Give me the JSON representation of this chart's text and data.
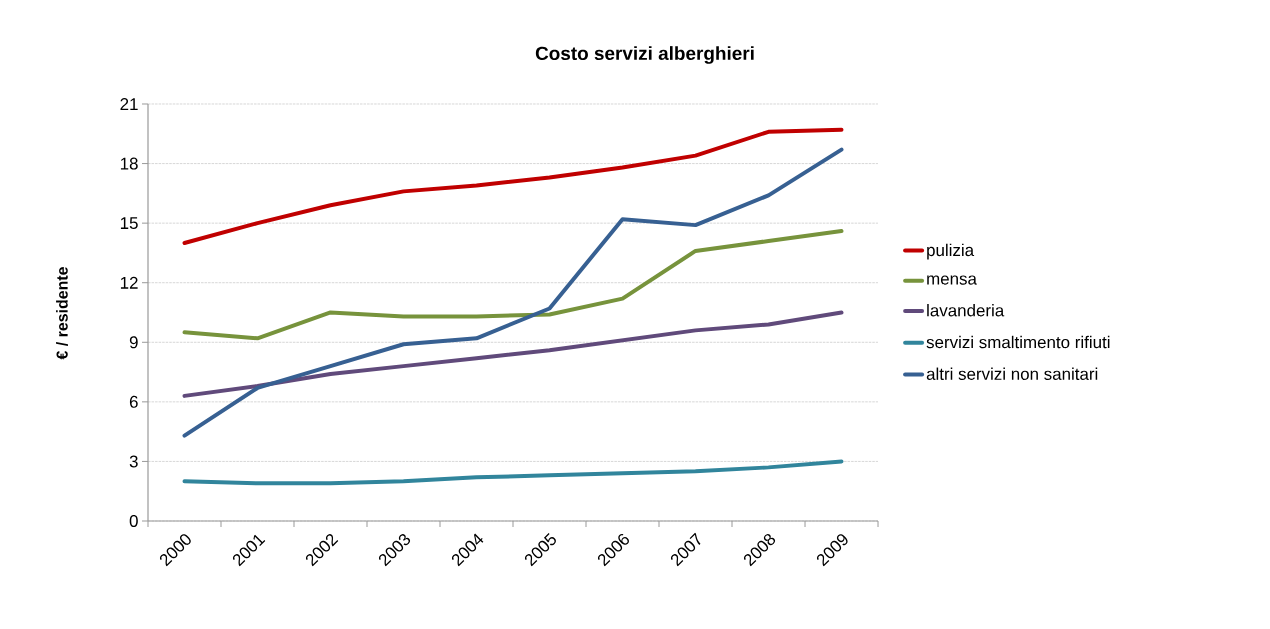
{
  "chart_data": {
    "type": "line",
    "title": "Costo servizi alberghieri",
    "ylabel": "€ / residente",
    "categories": [
      "2000",
      "2001",
      "2002",
      "2003",
      "2004",
      "2005",
      "2006",
      "2007",
      "2008",
      "2009"
    ],
    "series": [
      {
        "name": "pulizia",
        "color": "#c00000",
        "values": [
          14.0,
          15.0,
          15.9,
          16.6,
          16.9,
          17.3,
          17.8,
          18.4,
          19.6,
          19.7
        ]
      },
      {
        "name": "mensa",
        "color": "#77933c",
        "values": [
          9.5,
          9.2,
          10.5,
          10.3,
          10.3,
          10.4,
          11.2,
          13.6,
          14.1,
          14.6
        ]
      },
      {
        "name": "lavanderia",
        "color": "#604a7b",
        "values": [
          6.3,
          6.8,
          7.4,
          7.8,
          8.2,
          8.6,
          9.1,
          9.6,
          9.9,
          10.5
        ]
      },
      {
        "name": "servizi smaltimento rifiuti",
        "color": "#31859c",
        "values": [
          2.0,
          1.9,
          1.9,
          2.0,
          2.2,
          2.3,
          2.4,
          2.5,
          2.7,
          3.0
        ]
      },
      {
        "name": "altri servizi non sanitari",
        "color": "#376092",
        "values": [
          4.3,
          6.7,
          7.8,
          8.9,
          9.2,
          10.7,
          15.2,
          14.9,
          16.4,
          18.7
        ]
      }
    ],
    "ylim": [
      0,
      21
    ],
    "yticks": [
      0,
      3,
      6,
      9,
      12,
      15,
      18,
      21
    ],
    "grid": "y",
    "legend": "right",
    "line_style": "solid",
    "marker": "none"
  }
}
